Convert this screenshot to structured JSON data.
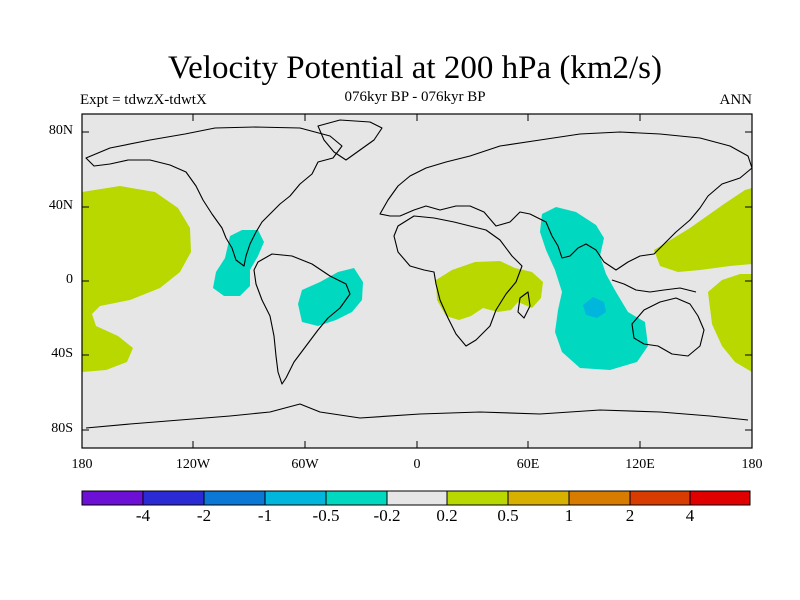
{
  "header": {
    "title": "Velocity Potential at 200 hPa (km2/s)",
    "subtitle": "076kyr BP - 076kyr BP",
    "left_label": "Expt = tdwzX-tdwtX",
    "right_label": "ANN"
  },
  "axes": {
    "lat_labels": [
      "80N",
      "40N",
      "0",
      "40S",
      "80S"
    ],
    "lon_labels": [
      "180",
      "120W",
      "60W",
      "0",
      "60E",
      "120E",
      "180"
    ]
  },
  "colorbar": {
    "colors": [
      "#6c10d6",
      "#2b2bd6",
      "#0b78d6",
      "#00b6dc",
      "#00d9c0",
      "#e6e6e6",
      "#b8d800",
      "#d8b000",
      "#d87c00",
      "#d83c00",
      "#e00000"
    ],
    "labels": [
      "-4",
      "-2",
      "-1",
      "-0.5",
      "-0.2",
      "0.2",
      "0.5",
      "1",
      "2",
      "4"
    ]
  },
  "map": {
    "background_color": "#e6e6e6",
    "positive_fill": "#b8d800",
    "negative_fill": "#00d9c0",
    "negative_core_fill": "#00b6dc"
  }
}
